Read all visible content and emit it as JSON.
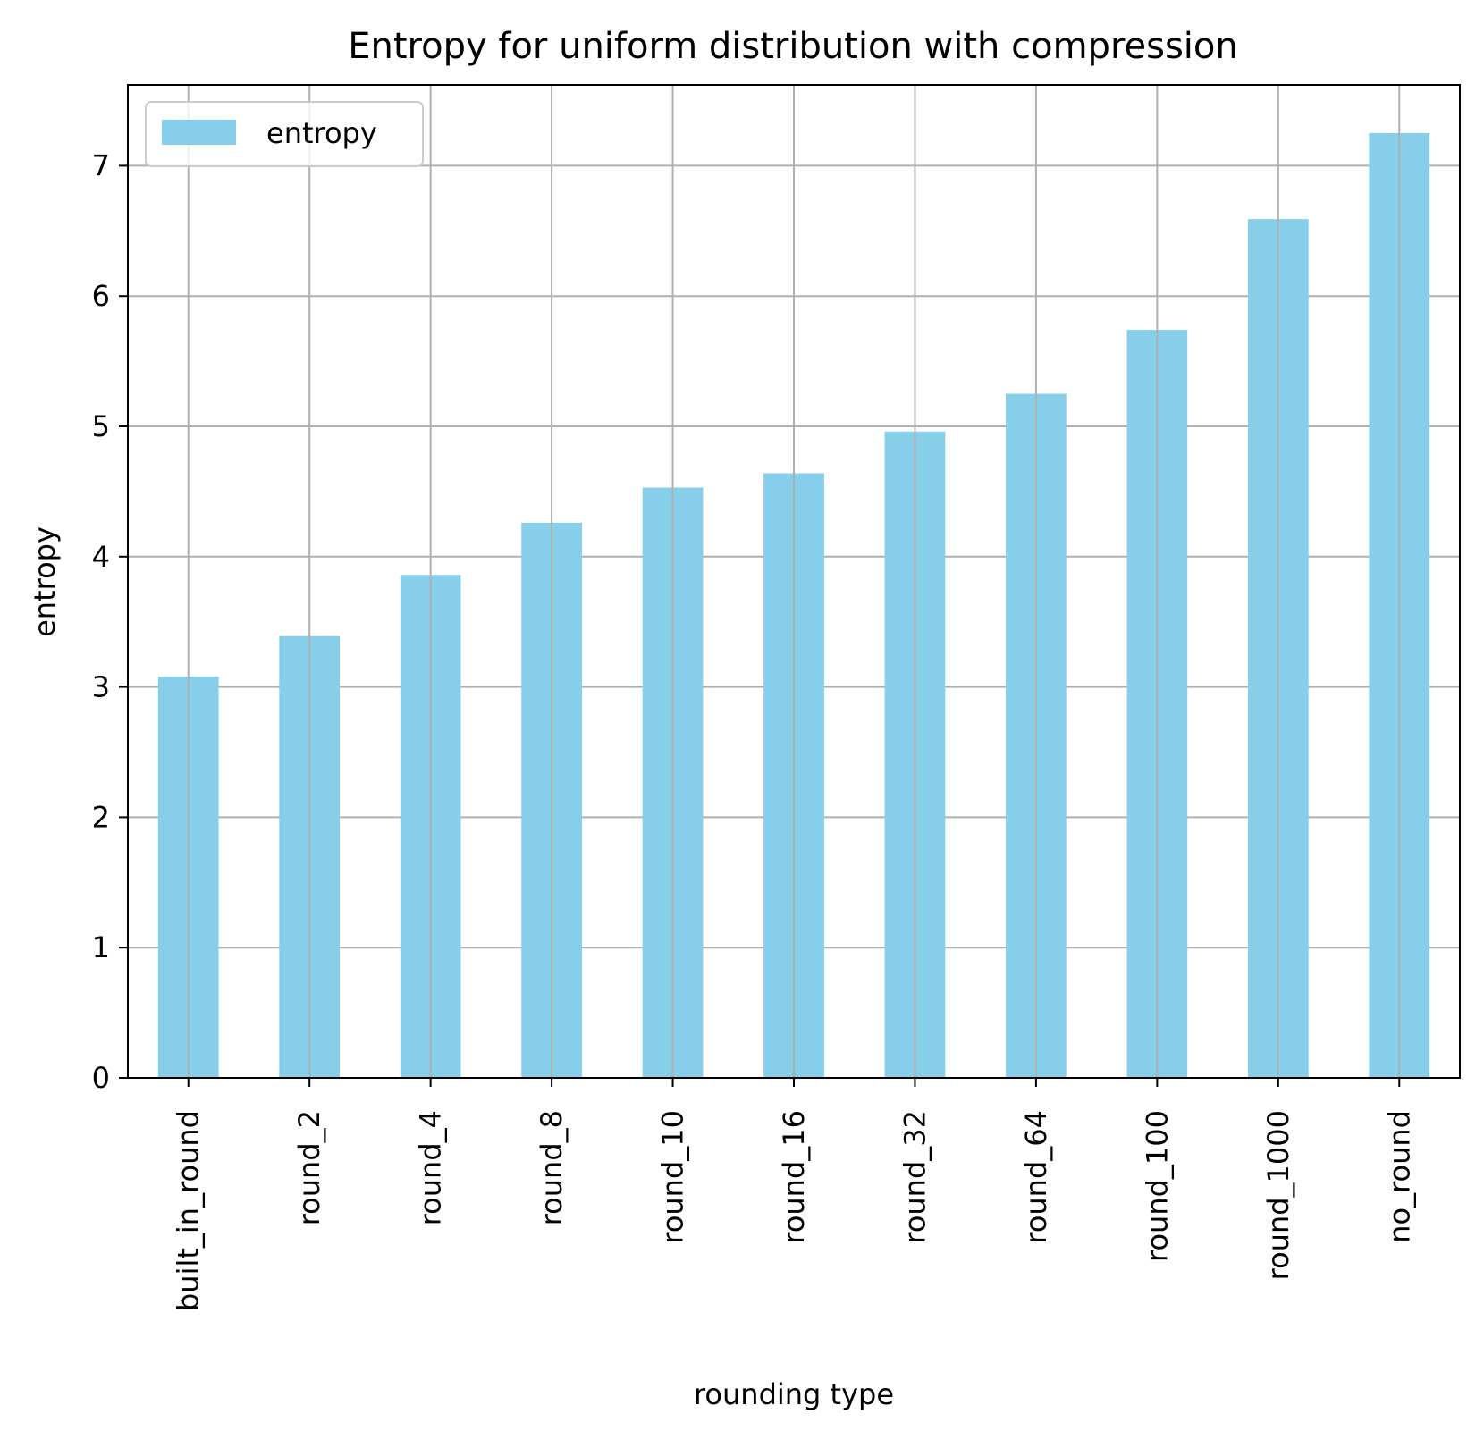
{
  "chart_data": {
    "type": "bar",
    "title": "Entropy for uniform distribution with compression",
    "xlabel": "rounding type",
    "ylabel": "entropy",
    "categories": [
      "built_in_round",
      "round_2",
      "round_4",
      "round_8",
      "round_10",
      "round_16",
      "round_32",
      "round_64",
      "round_100",
      "round_1000",
      "no_round"
    ],
    "series": [
      {
        "name": "entropy",
        "color": "#87ceeb",
        "values": [
          3.08,
          3.39,
          3.86,
          4.26,
          4.53,
          4.64,
          4.96,
          5.25,
          5.74,
          6.59,
          7.25
        ]
      }
    ],
    "ylim": [
      0,
      7.62
    ],
    "yticks": [
      0,
      1,
      2,
      3,
      4,
      5,
      6,
      7
    ],
    "grid": true,
    "legend": "top-left",
    "grid_color": "#b0b0b0"
  }
}
